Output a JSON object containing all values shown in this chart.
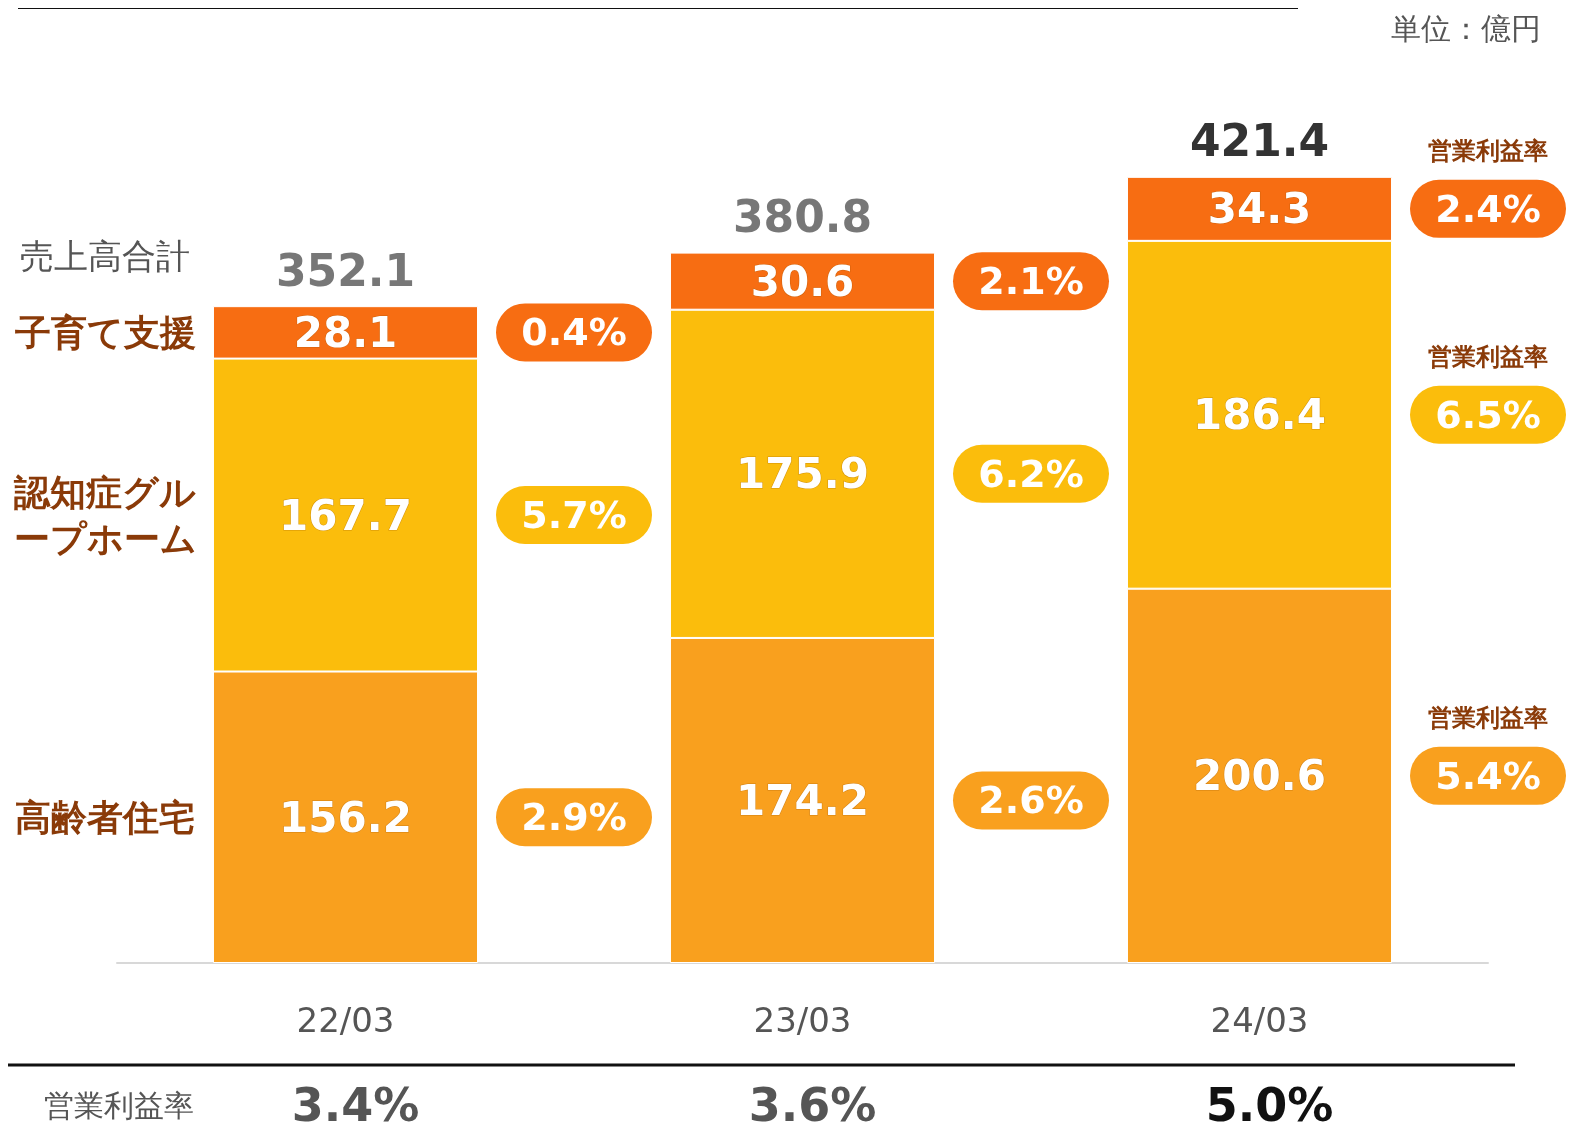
{
  "chart_data": {
    "type": "bar",
    "stacked": true,
    "categories": [
      "22/03",
      "23/03",
      "24/03"
    ],
    "series": [
      {
        "name": "高齢者住宅",
        "color": "#f9a01e",
        "values": [
          156.2,
          174.2,
          200.6
        ]
      },
      {
        "name": "認知症グループホーム",
        "color": "#fbbd0c",
        "values": [
          167.7,
          175.9,
          186.4
        ]
      },
      {
        "name": "子育て支援",
        "color": "#f76d12",
        "values": [
          28.1,
          30.6,
          34.3
        ]
      }
    ],
    "data_labels": true,
    "totals": [
      "352.1",
      "380.8",
      "421.4"
    ],
    "legend": "left",
    "annotations": [
      "単位：億円",
      "売上高合計",
      "営業利益率",
      "営業利益率",
      "営業利益率",
      "営業利益率",
      "2.9%",
      "5.7%",
      "0.4%",
      "2.6%",
      "6.2%",
      "2.1%",
      "5.4%",
      "6.5%",
      "2.4%",
      "3.4%",
      "3.6%",
      "5.0%"
    ]
  }
}
